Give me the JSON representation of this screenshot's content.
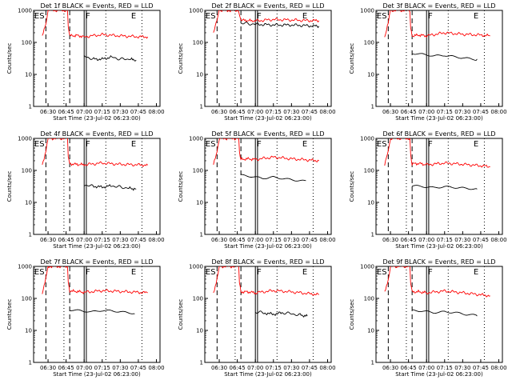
{
  "figure": {
    "background": "#ffffff",
    "event_color": "#000000",
    "lld_color": "#ff0000"
  },
  "chart_data": [
    {
      "type": "line",
      "title": "Det 1f BLACK = Events, RED = LLD",
      "xlabel": "Start Time (23-Jul-02 06:23:00)",
      "ylabel": "Counts/sec",
      "yscale": "log",
      "ylim": [
        1,
        1000
      ],
      "xlim": [
        6.3,
        8.05
      ],
      "xtick_labels": [
        "06:30",
        "06:45",
        "07:00",
        "07:15",
        "07:30",
        "07:45",
        "08:00"
      ],
      "ytick_labels": [
        "1",
        "10",
        "100",
        "1000"
      ],
      "markers": [
        "ES",
        "F",
        "E"
      ],
      "series": [
        {
          "name": "LLD",
          "color": "red",
          "x": [
            6.42,
            6.47,
            6.5,
            6.51,
            6.77,
            6.78,
            6.8,
            6.9,
            7.0,
            7.25,
            7.5,
            7.75,
            7.88
          ],
          "y": [
            150,
            400,
            1000,
            1000,
            1000,
            300,
            160,
            165,
            150,
            175,
            160,
            150,
            150
          ]
        },
        {
          "name": "Events",
          "color": "black",
          "x": [
            7.0,
            7.12,
            7.25,
            7.38,
            7.5,
            7.62,
            7.72
          ],
          "y": [
            38,
            30,
            30,
            35,
            30,
            30,
            28
          ]
        }
      ]
    },
    {
      "type": "line",
      "title": "Det 2f BLACK = Events, RED = LLD",
      "xlabel": "Start Time (23-Jul-02 06:23:00)",
      "ylabel": "Counts/sec",
      "yscale": "log",
      "ylim": [
        1,
        1000
      ],
      "xlim": [
        6.3,
        8.05
      ],
      "xtick_labels": [
        "06:30",
        "06:45",
        "07:00",
        "07:15",
        "07:30",
        "07:45",
        "08:00"
      ],
      "ytick_labels": [
        "1",
        "10",
        "100",
        "1000"
      ],
      "markers": [
        "ES",
        "F",
        "E"
      ],
      "series": [
        {
          "name": "LLD",
          "color": "red",
          "x": [
            6.42,
            6.47,
            6.5,
            6.51,
            6.77,
            6.78,
            6.8,
            6.9,
            7.0,
            7.25,
            7.5,
            7.75,
            7.88
          ],
          "y": [
            200,
            500,
            1000,
            1000,
            1000,
            700,
            500,
            480,
            470,
            520,
            500,
            480,
            480
          ]
        },
        {
          "name": "Events",
          "color": "black",
          "x": [
            6.8,
            7.0,
            7.25,
            7.5,
            7.75,
            7.88
          ],
          "y": [
            400,
            370,
            350,
            350,
            330,
            320
          ]
        }
      ]
    },
    {
      "type": "line",
      "title": "Det 3f BLACK = Events, RED = LLD",
      "xlabel": "Start Time (23-Jul-02 06:23:00)",
      "ylabel": "Counts/sec",
      "yscale": "log",
      "ylim": [
        1,
        1000
      ],
      "xlim": [
        6.3,
        8.05
      ],
      "xtick_labels": [
        "06:30",
        "06:45",
        "07:00",
        "07:15",
        "07:30",
        "07:45",
        "08:00"
      ],
      "ytick_labels": [
        "1",
        "10",
        "100",
        "1000"
      ],
      "markers": [
        "ES",
        "F",
        "E"
      ],
      "series": [
        {
          "name": "LLD",
          "color": "red",
          "x": [
            6.42,
            6.47,
            6.5,
            6.51,
            6.77,
            6.78,
            6.8,
            6.9,
            7.0,
            7.25,
            7.5,
            7.75,
            7.88
          ],
          "y": [
            150,
            400,
            1000,
            1000,
            1000,
            300,
            160,
            170,
            160,
            200,
            180,
            170,
            160
          ]
        },
        {
          "name": "Events",
          "color": "black",
          "x": [
            6.8,
            6.95,
            7.1,
            7.25,
            7.4,
            7.55,
            7.7
          ],
          "y": [
            45,
            42,
            38,
            40,
            36,
            33,
            30
          ]
        }
      ]
    },
    {
      "type": "line",
      "title": "Det 4f BLACK = Events, RED = LLD",
      "xlabel": "Start Time (23-Jul-02 06:23:00)",
      "ylabel": "Counts/sec",
      "yscale": "log",
      "ylim": [
        1,
        1000
      ],
      "xlim": [
        6.3,
        8.05
      ],
      "xtick_labels": [
        "06:30",
        "06:45",
        "07:00",
        "07:15",
        "07:30",
        "07:45",
        "08:00"
      ],
      "ytick_labels": [
        "1",
        "10",
        "100",
        "1000"
      ],
      "markers": [
        "ES",
        "F",
        "E"
      ],
      "series": [
        {
          "name": "LLD",
          "color": "red",
          "x": [
            6.42,
            6.47,
            6.5,
            6.51,
            6.77,
            6.78,
            6.8,
            6.9,
            7.0,
            7.25,
            7.5,
            7.75,
            7.88
          ],
          "y": [
            150,
            400,
            1000,
            1000,
            1000,
            300,
            160,
            155,
            150,
            170,
            155,
            150,
            145
          ]
        },
        {
          "name": "Events",
          "color": "black",
          "x": [
            7.0,
            7.12,
            7.25,
            7.38,
            7.5,
            7.62,
            7.72
          ],
          "y": [
            35,
            32,
            30,
            33,
            30,
            28,
            26
          ]
        }
      ]
    },
    {
      "type": "line",
      "title": "Det 5f BLACK = Events, RED = LLD",
      "xlabel": "Start Time (23-Jul-02 06:23:00)",
      "ylabel": "Counts/sec",
      "yscale": "log",
      "ylim": [
        1,
        1000
      ],
      "xlim": [
        6.3,
        8.05
      ],
      "xtick_labels": [
        "06:30",
        "06:45",
        "07:00",
        "07:15",
        "07:30",
        "07:45",
        "08:00"
      ],
      "ytick_labels": [
        "1",
        "10",
        "100",
        "1000"
      ],
      "markers": [
        "ES",
        "F",
        "E"
      ],
      "series": [
        {
          "name": "LLD",
          "color": "red",
          "x": [
            6.42,
            6.47,
            6.5,
            6.51,
            6.77,
            6.78,
            6.8,
            6.9,
            7.0,
            7.25,
            7.5,
            7.75,
            7.88
          ],
          "y": [
            150,
            400,
            1000,
            1000,
            1000,
            400,
            220,
            230,
            220,
            260,
            230,
            210,
            200
          ]
        },
        {
          "name": "Events",
          "color": "black",
          "x": [
            6.8,
            6.95,
            7.1,
            7.25,
            7.4,
            7.55,
            7.7
          ],
          "y": [
            75,
            68,
            60,
            65,
            58,
            52,
            48
          ]
        }
      ]
    },
    {
      "type": "line",
      "title": "Det 6f BLACK = Events, RED = LLD",
      "xlabel": "Start Time (23-Jul-02 06:23:00)",
      "ylabel": "Counts/sec",
      "yscale": "log",
      "ylim": [
        1,
        1000
      ],
      "xlim": [
        6.3,
        8.05
      ],
      "xtick_labels": [
        "06:30",
        "06:45",
        "07:00",
        "07:15",
        "07:30",
        "07:45",
        "08:00"
      ],
      "ytick_labels": [
        "1",
        "10",
        "100",
        "1000"
      ],
      "markers": [
        "ES",
        "F",
        "E"
      ],
      "series": [
        {
          "name": "LLD",
          "color": "red",
          "x": [
            6.42,
            6.47,
            6.5,
            6.51,
            6.77,
            6.78,
            6.8,
            6.9,
            7.0,
            7.25,
            7.5,
            7.75,
            7.88
          ],
          "y": [
            150,
            400,
            1000,
            1000,
            1000,
            300,
            160,
            165,
            150,
            170,
            155,
            140,
            130
          ]
        },
        {
          "name": "Events",
          "color": "black",
          "x": [
            6.8,
            6.95,
            7.1,
            7.25,
            7.4,
            7.55,
            7.7
          ],
          "y": [
            35,
            33,
            30,
            32,
            30,
            28,
            26
          ]
        }
      ]
    },
    {
      "type": "line",
      "title": "Det 7f BLACK = Events, RED = LLD",
      "xlabel": "Start Time (23-Jul-02 06:23:00)",
      "ylabel": "Counts/sec",
      "yscale": "log",
      "ylim": [
        1,
        1000
      ],
      "xlim": [
        6.3,
        8.05
      ],
      "xtick_labels": [
        "06:30",
        "06:45",
        "07:00",
        "07:15",
        "07:30",
        "07:45",
        "08:00"
      ],
      "ytick_labels": [
        "1",
        "10",
        "100",
        "1000"
      ],
      "markers": [
        "ES",
        "F",
        "E"
      ],
      "series": [
        {
          "name": "LLD",
          "color": "red",
          "x": [
            6.42,
            6.47,
            6.5,
            6.51,
            6.77,
            6.78,
            6.8,
            6.9,
            7.0,
            7.25,
            7.5,
            7.75,
            7.88
          ],
          "y": [
            150,
            400,
            1000,
            1000,
            1000,
            300,
            170,
            165,
            155,
            175,
            165,
            155,
            150
          ]
        },
        {
          "name": "Events",
          "color": "black",
          "x": [
            6.8,
            6.95,
            7.1,
            7.25,
            7.4,
            7.55,
            7.7
          ],
          "y": [
            45,
            42,
            38,
            42,
            40,
            36,
            33
          ]
        }
      ]
    },
    {
      "type": "line",
      "title": "Det 8f BLACK = Events, RED = LLD",
      "xlabel": "Start Time (23-Jul-02 06:23:00)",
      "ylabel": "Counts/sec",
      "yscale": "log",
      "ylim": [
        1,
        1000
      ],
      "xlim": [
        6.3,
        8.05
      ],
      "xtick_labels": [
        "06:30",
        "06:45",
        "07:00",
        "07:15",
        "07:30",
        "07:45",
        "08:00"
      ],
      "ytick_labels": [
        "1",
        "10",
        "100",
        "1000"
      ],
      "markers": [
        "ES",
        "F",
        "E"
      ],
      "series": [
        {
          "name": "LLD",
          "color": "red",
          "x": [
            6.42,
            6.47,
            6.5,
            6.51,
            6.77,
            6.78,
            6.8,
            6.9,
            7.0,
            7.25,
            7.5,
            7.75,
            7.88
          ],
          "y": [
            150,
            400,
            1000,
            1000,
            1000,
            300,
            160,
            160,
            150,
            175,
            160,
            140,
            130
          ]
        },
        {
          "name": "Events",
          "color": "black",
          "x": [
            7.0,
            7.12,
            7.25,
            7.38,
            7.5,
            7.62,
            7.72
          ],
          "y": [
            38,
            35,
            32,
            36,
            33,
            30,
            28
          ]
        }
      ]
    },
    {
      "type": "line",
      "title": "Det 9f BLACK = Events, RED = LLD",
      "xlabel": "Start Time (23-Jul-02 06:23:00)",
      "ylabel": "Counts/sec",
      "yscale": "log",
      "ylim": [
        1,
        1000
      ],
      "xlim": [
        6.3,
        8.05
      ],
      "xtick_labels": [
        "06:30",
        "06:45",
        "07:00",
        "07:15",
        "07:30",
        "07:45",
        "08:00"
      ],
      "ytick_labels": [
        "1",
        "10",
        "100",
        "1000"
      ],
      "markers": [
        "ES",
        "F",
        "E"
      ],
      "series": [
        {
          "name": "LLD",
          "color": "red",
          "x": [
            6.42,
            6.47,
            6.5,
            6.51,
            6.77,
            6.78,
            6.8,
            6.9,
            7.0,
            7.25,
            7.5,
            7.75,
            7.88
          ],
          "y": [
            150,
            400,
            1000,
            1000,
            1000,
            300,
            160,
            160,
            150,
            170,
            150,
            130,
            120
          ]
        },
        {
          "name": "Events",
          "color": "black",
          "x": [
            6.8,
            6.95,
            7.1,
            7.25,
            7.4,
            7.55,
            7.7
          ],
          "y": [
            40,
            38,
            34,
            36,
            34,
            30,
            28
          ]
        }
      ]
    }
  ]
}
